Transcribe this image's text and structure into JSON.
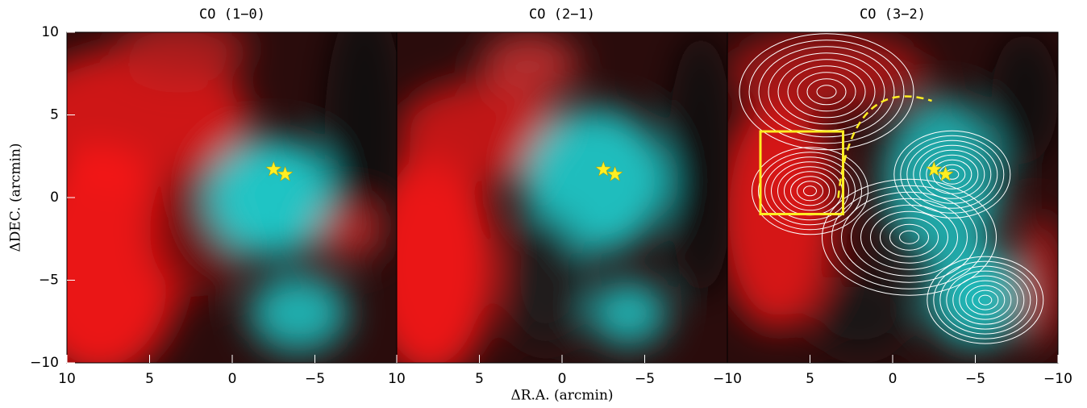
{
  "chart_data": [
    {
      "type": "image",
      "title": "CO (1−0)",
      "ylabel": "ΔDEC. (arcmin)",
      "xlim": [
        10,
        -10
      ],
      "ylim": [
        -10,
        10
      ],
      "xticks": [
        10,
        5,
        0,
        {
          "value": -5,
          "label": "−5"
        }
      ],
      "yticks": [
        {
          "value": -10,
          "label": "−10"
        },
        {
          "value": -5,
          "label": "−5"
        },
        0,
        5,
        10
      ],
      "markers": {
        "color": "#ffee22",
        "x": [
          -2.5,
          -3.2
        ],
        "y": [
          1.7,
          1.4
        ]
      }
    },
    {
      "type": "image",
      "title": "CO (2−1)",
      "xlabel": "ΔR.A. (arcmin)",
      "xlim": [
        10,
        -10
      ],
      "ylim": [
        -10,
        10
      ],
      "xticks": [
        10,
        5,
        0,
        {
          "value": -5,
          "label": "−5"
        },
        {
          "value": -10,
          "label": "−10"
        }
      ],
      "markers": {
        "color": "#ffee22",
        "x": [
          -2.5,
          -3.2
        ],
        "y": [
          1.7,
          1.4
        ]
      }
    },
    {
      "type": "image",
      "title": "CO (3−2)",
      "xlim": [
        10,
        -10
      ],
      "ylim": [
        -10,
        10
      ],
      "xticks": [
        5,
        0,
        {
          "value": -5,
          "label": "−5"
        },
        {
          "value": -10,
          "label": "−10"
        }
      ],
      "markers": {
        "color": "#ffee22",
        "x": [
          -2.5,
          -3.2
        ],
        "y": [
          1.7,
          1.4
        ]
      },
      "box": {
        "color": "#ffee22",
        "x": [
          8,
          3
        ],
        "y": [
          -1,
          4
        ]
      }
    }
  ]
}
